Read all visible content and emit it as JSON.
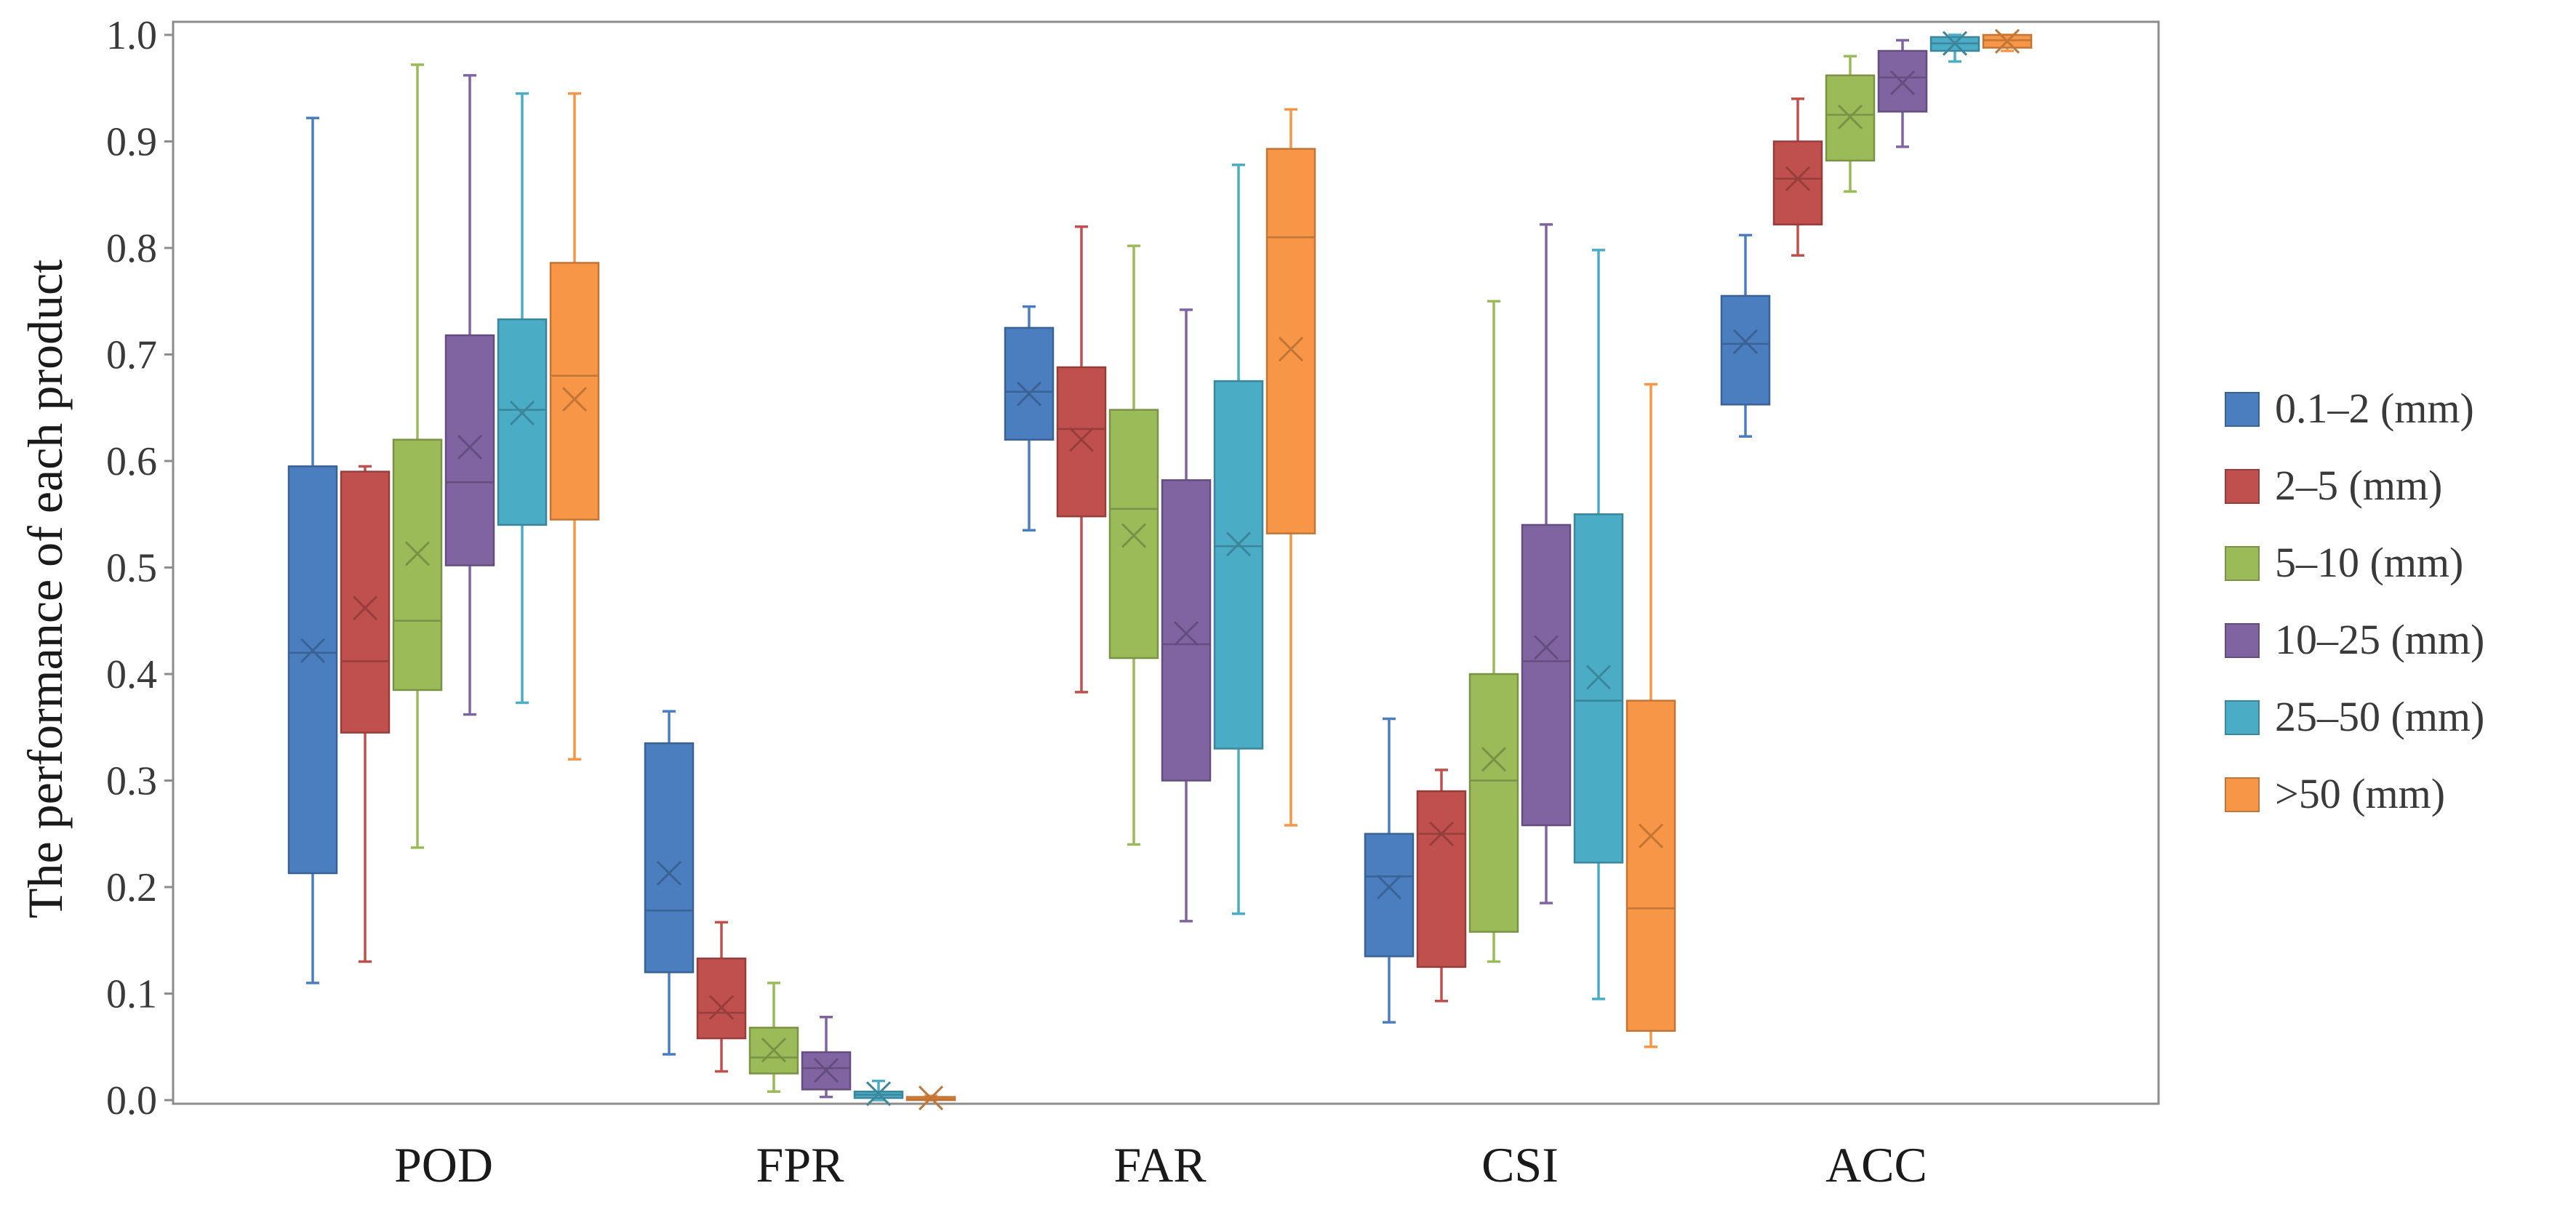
{
  "chart_data": {
    "type": "box",
    "title": "",
    "xlabel": "",
    "ylabel": "The performance of each product",
    "ylim": [
      0,
      1.0
    ],
    "yticks": [
      "0.0",
      "0.1",
      "0.2",
      "0.3",
      "0.4",
      "0.5",
      "0.6",
      "0.7",
      "0.8",
      "0.9",
      "1.0"
    ],
    "grid": false,
    "legend_position": "right",
    "categories": [
      "POD",
      "FPR",
      "FAR",
      "CSI",
      "ACC"
    ],
    "series": [
      {
        "name": "0.1–2 (mm)",
        "color": "#4a7ebf",
        "boxes": [
          {
            "min": 0.11,
            "q1": 0.213,
            "median": 0.42,
            "q3": 0.595,
            "max": 0.922,
            "mean": 0.422
          },
          {
            "min": 0.043,
            "q1": 0.12,
            "median": 0.178,
            "q3": 0.335,
            "max": 0.365,
            "mean": 0.213
          },
          {
            "min": 0.535,
            "q1": 0.62,
            "median": 0.665,
            "q3": 0.725,
            "max": 0.745,
            "mean": 0.663
          },
          {
            "min": 0.073,
            "q1": 0.135,
            "median": 0.21,
            "q3": 0.25,
            "max": 0.358,
            "mean": 0.2
          },
          {
            "min": 0.623,
            "q1": 0.653,
            "median": 0.71,
            "q3": 0.755,
            "max": 0.812,
            "mean": 0.712
          }
        ]
      },
      {
        "name": "2–5 (mm)",
        "color": "#c0504d",
        "boxes": [
          {
            "min": 0.13,
            "q1": 0.345,
            "median": 0.412,
            "q3": 0.59,
            "max": 0.595,
            "mean": 0.462
          },
          {
            "min": 0.027,
            "q1": 0.058,
            "median": 0.082,
            "q3": 0.133,
            "max": 0.167,
            "mean": 0.087
          },
          {
            "min": 0.383,
            "q1": 0.548,
            "median": 0.63,
            "q3": 0.688,
            "max": 0.82,
            "mean": 0.62
          },
          {
            "min": 0.093,
            "q1": 0.125,
            "median": 0.25,
            "q3": 0.29,
            "max": 0.31,
            "mean": 0.25
          },
          {
            "min": 0.793,
            "q1": 0.822,
            "median": 0.865,
            "q3": 0.9,
            "max": 0.94,
            "mean": 0.865
          }
        ]
      },
      {
        "name": "5–10 (mm)",
        "color": "#9bbb59",
        "boxes": [
          {
            "min": 0.237,
            "q1": 0.385,
            "median": 0.45,
            "q3": 0.62,
            "max": 0.972,
            "mean": 0.513
          },
          {
            "min": 0.008,
            "q1": 0.025,
            "median": 0.04,
            "q3": 0.068,
            "max": 0.11,
            "mean": 0.047
          },
          {
            "min": 0.24,
            "q1": 0.415,
            "median": 0.555,
            "q3": 0.648,
            "max": 0.802,
            "mean": 0.53
          },
          {
            "min": 0.13,
            "q1": 0.158,
            "median": 0.3,
            "q3": 0.4,
            "max": 0.75,
            "mean": 0.32
          },
          {
            "min": 0.853,
            "q1": 0.882,
            "median": 0.925,
            "q3": 0.962,
            "max": 0.98,
            "mean": 0.923
          }
        ]
      },
      {
        "name": "10–25 (mm)",
        "color": "#8064a2",
        "boxes": [
          {
            "min": 0.362,
            "q1": 0.502,
            "median": 0.58,
            "q3": 0.718,
            "max": 0.962,
            "mean": 0.613
          },
          {
            "min": 0.003,
            "q1": 0.01,
            "median": 0.03,
            "q3": 0.045,
            "max": 0.078,
            "mean": 0.028
          },
          {
            "min": 0.168,
            "q1": 0.3,
            "median": 0.428,
            "q3": 0.582,
            "max": 0.742,
            "mean": 0.438
          },
          {
            "min": 0.185,
            "q1": 0.258,
            "median": 0.412,
            "q3": 0.54,
            "max": 0.822,
            "mean": 0.425
          },
          {
            "min": 0.895,
            "q1": 0.928,
            "median": 0.96,
            "q3": 0.985,
            "max": 0.995,
            "mean": 0.955
          }
        ]
      },
      {
        "name": "25–50 (mm)",
        "color": "#4bacc6",
        "boxes": [
          {
            "min": 0.373,
            "q1": 0.54,
            "median": 0.648,
            "q3": 0.733,
            "max": 0.945,
            "mean": 0.645
          },
          {
            "min": 0.0,
            "q1": 0.002,
            "median": 0.005,
            "q3": 0.008,
            "max": 0.018,
            "mean": 0.006
          },
          {
            "min": 0.175,
            "q1": 0.33,
            "median": 0.52,
            "q3": 0.675,
            "max": 0.878,
            "mean": 0.522
          },
          {
            "min": 0.095,
            "q1": 0.223,
            "median": 0.375,
            "q3": 0.55,
            "max": 0.798,
            "mean": 0.397
          },
          {
            "min": 0.975,
            "q1": 0.985,
            "median": 0.992,
            "q3": 0.998,
            "max": 1.0,
            "mean": 0.992
          }
        ]
      },
      {
        "name": ">50 (mm)",
        "color": "#f79646",
        "boxes": [
          {
            "min": 0.32,
            "q1": 0.545,
            "median": 0.68,
            "q3": 0.786,
            "max": 0.945,
            "mean": 0.658
          },
          {
            "min": 0.0,
            "q1": 0.0,
            "median": 0.001,
            "q3": 0.003,
            "max": 0.004,
            "mean": 0.002
          },
          {
            "min": 0.258,
            "q1": 0.532,
            "median": 0.81,
            "q3": 0.893,
            "max": 0.93,
            "mean": 0.705
          },
          {
            "min": 0.05,
            "q1": 0.065,
            "median": 0.18,
            "q3": 0.375,
            "max": 0.672,
            "mean": 0.248
          },
          {
            "min": 0.985,
            "q1": 0.988,
            "median": 0.995,
            "q3": 1.0,
            "max": 1.0,
            "mean": 0.994
          }
        ]
      }
    ]
  }
}
